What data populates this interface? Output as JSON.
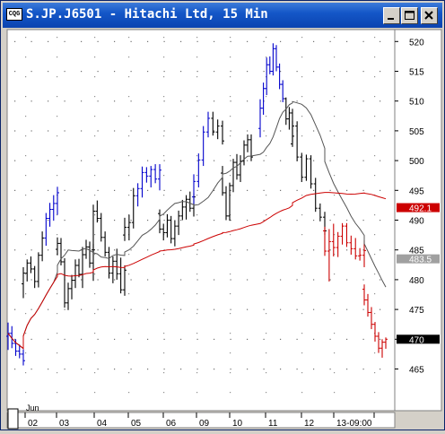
{
  "window": {
    "title": "S.JP.J6501 - Hitachi Ltd, 15 Min",
    "icon_label": "CQG"
  },
  "colors": {
    "up_bar": "#0000cc",
    "down_bar": "#cc0000",
    "neutral_bar": "#000000",
    "ma_short": "#555555",
    "ma_long": "#cc0000"
  },
  "chart_data": {
    "type": "bar",
    "subtype": "ohlc",
    "title": "S.JP.J6501 - Hitachi Ltd, 15 Min",
    "ylim": [
      458,
      522
    ],
    "y_ticks": [
      465,
      470,
      475,
      480,
      485,
      490,
      495,
      500,
      505,
      510,
      515,
      520
    ],
    "x_ticks": [
      "02",
      "03",
      "04",
      "05",
      "06",
      "09",
      "10",
      "11",
      "12",
      "13-09:00"
    ],
    "x_month_label": "Jun",
    "price_markers": [
      {
        "label": "492.1",
        "value": 492.1,
        "color": "#cc0000"
      },
      {
        "label": "483.5",
        "value": 483.5,
        "color": "#a0a0a0"
      },
      {
        "label": "470",
        "value": 470.0,
        "color": "#000000"
      }
    ],
    "bars": [
      [
        470.5,
        472.8,
        468.2,
        471.0
      ],
      [
        471.0,
        472.2,
        468.5,
        469.3
      ],
      [
        469.3,
        470.0,
        467.2,
        468.0
      ],
      [
        468.0,
        469.1,
        466.8,
        467.5
      ],
      [
        467.5,
        468.3,
        465.6,
        466.4
      ],
      [
        479.3,
        482.1,
        476.9,
        481.1
      ],
      [
        481.1,
        483.4,
        479.7,
        482.8
      ],
      [
        482.8,
        483.9,
        481.1,
        481.8
      ],
      [
        481.8,
        482.3,
        478.6,
        479.7
      ],
      [
        479.7,
        484.6,
        478.7,
        484.1
      ],
      [
        484.1,
        488.1,
        483.1,
        487.0
      ],
      [
        487.0,
        491.2,
        485.7,
        490.3
      ],
      [
        490.3,
        492.9,
        488.9,
        491.8
      ],
      [
        491.8,
        494.2,
        489.9,
        492.8
      ],
      [
        492.8,
        495.6,
        490.9,
        494.6
      ],
      [
        485.1,
        487.1,
        484.1,
        486.1
      ],
      [
        486.1,
        487.0,
        482.4,
        483.0
      ],
      [
        483.0,
        483.6,
        475.3,
        476.1
      ],
      [
        476.1,
        479.5,
        474.9,
        478.5
      ],
      [
        478.5,
        480.8,
        476.7,
        479.9
      ],
      [
        479.9,
        483.4,
        478.6,
        482.4
      ],
      [
        482.4,
        483.5,
        480.4,
        480.9
      ],
      [
        480.9,
        485.5,
        478.6,
        484.2
      ],
      [
        484.2,
        486.7,
        483.5,
        485.5
      ],
      [
        485.5,
        486.4,
        482.0,
        482.8
      ],
      [
        482.8,
        486.0,
        479.8,
        485.0
      ],
      [
        485.0,
        492.6,
        484.7,
        491.5
      ],
      [
        491.5,
        493.3,
        489.6,
        490.3
      ],
      [
        490.3,
        491.2,
        486.4,
        487.1
      ],
      [
        487.1,
        488.1,
        483.9,
        484.6
      ],
      [
        484.6,
        485.5,
        480.2,
        481.1
      ],
      [
        481.1,
        483.9,
        479.4,
        483.1
      ],
      [
        483.1,
        485.2,
        480.0,
        481.0
      ],
      [
        481.0,
        483.7,
        477.7,
        478.3
      ],
      [
        478.3,
        482.4,
        477.3,
        481.6
      ],
      [
        487.5,
        490.4,
        486.5,
        488.8
      ],
      [
        488.8,
        490.9,
        486.6,
        489.6
      ],
      [
        489.6,
        495.4,
        488.6,
        494.1
      ],
      [
        494.1,
        496.2,
        492.3,
        495.3
      ],
      [
        495.3,
        499.0,
        493.8,
        498.0
      ],
      [
        498.0,
        498.9,
        496.3,
        497.4
      ],
      [
        497.4,
        499.1,
        495.5,
        498.5
      ],
      [
        498.5,
        499.4,
        496.2,
        496.9
      ],
      [
        496.9,
        499.4,
        495.0,
        498.4
      ],
      [
        491.1,
        491.8,
        487.8,
        488.5
      ],
      [
        488.5,
        489.4,
        486.6,
        487.9
      ],
      [
        487.9,
        491.0,
        487.1,
        490.0
      ],
      [
        490.0,
        490.7,
        486.1,
        486.9
      ],
      [
        486.9,
        490.0,
        485.6,
        489.0
      ],
      [
        489.0,
        491.6,
        487.5,
        490.7
      ],
      [
        490.7,
        493.4,
        490.0,
        492.2
      ],
      [
        492.2,
        494.2,
        490.1,
        493.5
      ],
      [
        493.5,
        494.8,
        491.4,
        492.0
      ],
      [
        492.0,
        494.5,
        490.6,
        493.9
      ],
      [
        493.9,
        497.7,
        492.7,
        496.5
      ],
      [
        496.5,
        501.2,
        495.5,
        500.1
      ],
      [
        500.1,
        505.8,
        499.1,
        504.8
      ],
      [
        504.8,
        508.2,
        503.9,
        507.1
      ],
      [
        507.1,
        508.2,
        504.2,
        504.8
      ],
      [
        504.8,
        506.9,
        503.6,
        505.8
      ],
      [
        505.8,
        506.7,
        502.7,
        503.3
      ],
      [
        497.9,
        499.1,
        494.1,
        494.6
      ],
      [
        494.6,
        495.7,
        490.0,
        490.7
      ],
      [
        490.7,
        496.3,
        489.9,
        495.8
      ],
      [
        495.8,
        500.3,
        494.7,
        499.7
      ],
      [
        499.7,
        501.1,
        496.8,
        497.6
      ],
      [
        497.6,
        500.9,
        496.4,
        499.9
      ],
      [
        499.9,
        503.4,
        499.2,
        502.6
      ],
      [
        502.6,
        504.4,
        501.4,
        503.5
      ],
      [
        503.5,
        504.4,
        499.9,
        500.6
      ],
      [
        505.4,
        510.3,
        503.9,
        508.8
      ],
      [
        508.8,
        513.1,
        507.7,
        512.1
      ],
      [
        512.1,
        517.3,
        511.0,
        516.1
      ],
      [
        516.1,
        517.5,
        514.5,
        515.0
      ],
      [
        515.0,
        519.7,
        514.3,
        518.8
      ],
      [
        518.8,
        519.4,
        515.0,
        515.7
      ],
      [
        515.7,
        516.3,
        512.0,
        512.8
      ],
      [
        512.8,
        513.5,
        509.8,
        510.4
      ],
      [
        510.4,
        510.6,
        506.0,
        507.0
      ],
      [
        507.0,
        509.0,
        505.2,
        508.0
      ],
      [
        508.0,
        508.7,
        503.0,
        504.1
      ],
      [
        502.8,
        506.7,
        502.3,
        505.8
      ],
      [
        505.8,
        506.6,
        499.9,
        500.6
      ],
      [
        500.6,
        501.3,
        496.4,
        497.2
      ],
      [
        497.2,
        501.0,
        496.6,
        500.3
      ],
      [
        500.3,
        500.9,
        495.3,
        496.1
      ],
      [
        496.1,
        497.1,
        491.4,
        492.0
      ],
      [
        492.0,
        492.8,
        489.8,
        490.5
      ],
      [
        490.5,
        491.4,
        487.5,
        488.2
      ],
      [
        488.2,
        488.9,
        484.0,
        484.8
      ],
      [
        484.8,
        488.5,
        479.7,
        486.4
      ],
      [
        486.4,
        489.4,
        483.9,
        485.4
      ],
      [
        485.4,
        488.0,
        483.8,
        487.3
      ],
      [
        487.3,
        489.5,
        485.9,
        489.0
      ],
      [
        489.0,
        489.5,
        485.5,
        486.2
      ],
      [
        486.2,
        487.4,
        484.2,
        485.2
      ],
      [
        485.2,
        487.0,
        483.4,
        484.0
      ],
      [
        484.0,
        485.3,
        483.2,
        484.1
      ],
      [
        484.1,
        486.6,
        482.1,
        484.9
      ],
      [
        478.4,
        479.2,
        475.7,
        476.6
      ],
      [
        476.6,
        477.6,
        473.8,
        474.5
      ],
      [
        474.5,
        475.4,
        471.7,
        472.5
      ],
      [
        472.5,
        472.9,
        469.6,
        470.5
      ],
      [
        470.5,
        471.2,
        467.7,
        468.5
      ],
      [
        468.5,
        470.0,
        466.9,
        469.5
      ],
      [
        469.5,
        470.3,
        468.4,
        470.0
      ]
    ]
  }
}
